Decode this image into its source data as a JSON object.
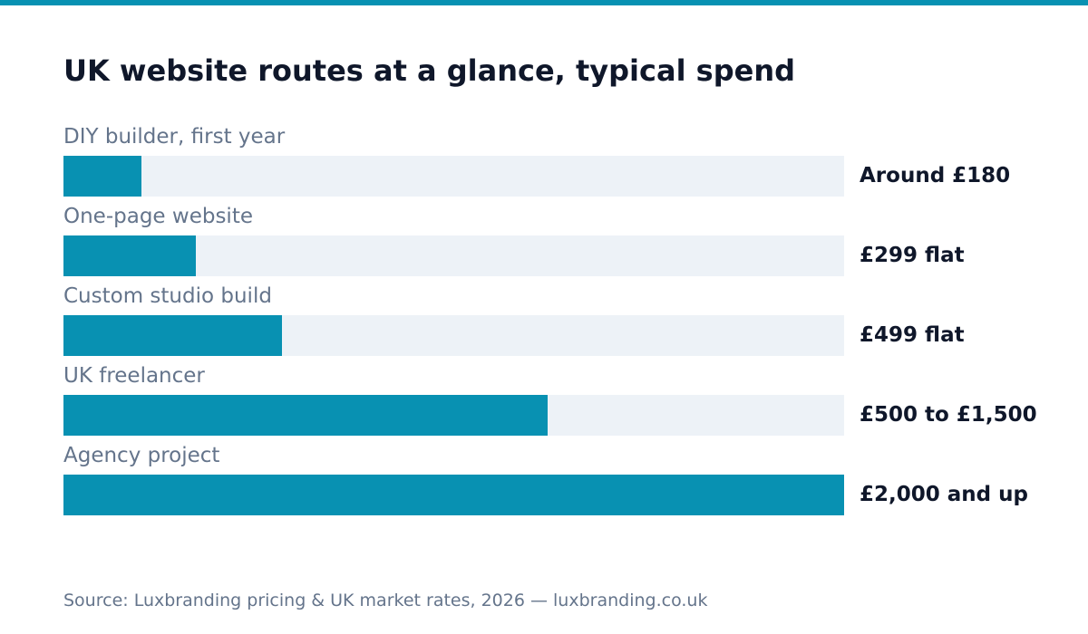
{
  "colors": {
    "accent": "#0891b2",
    "track": "#edf2f7",
    "title": "#0f172a",
    "label": "#64748b"
  },
  "chart_data": {
    "type": "bar",
    "orientation": "horizontal",
    "title": "UK website routes at a glance, typical spend",
    "categories": [
      "DIY builder, first year",
      "One-page website",
      "Custom studio build",
      "UK freelancer",
      "Agency project"
    ],
    "value_labels": [
      "Around £180",
      "£299 flat",
      "£499 flat",
      "£500 to £1,500",
      "£2,000 and up"
    ],
    "fill_fractions": [
      0.1,
      0.17,
      0.28,
      0.62,
      1.0
    ],
    "grid": false,
    "legend": "none"
  },
  "source": "Source: Luxbranding pricing & UK market rates, 2026 — luxbranding.co.uk"
}
